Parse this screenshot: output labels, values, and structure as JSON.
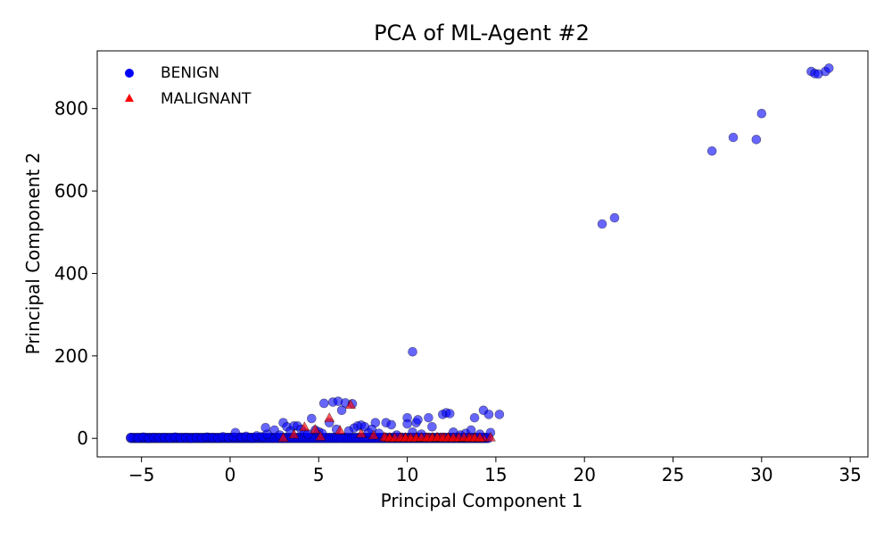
{
  "chart_data": {
    "type": "scatter",
    "title": "PCA of ML-Agent #2",
    "xlabel": "Principal Component 1",
    "ylabel": "Principal Component 2",
    "xlim": [
      -7.5,
      36
    ],
    "ylim": [
      -45,
      940
    ],
    "xticks": [
      -5,
      0,
      5,
      10,
      15,
      20,
      25,
      30,
      35
    ],
    "yticks": [
      0,
      200,
      400,
      600,
      800
    ],
    "xtick_labels": [
      "−5",
      "0",
      "5",
      "10",
      "15",
      "20",
      "25",
      "30",
      "35"
    ],
    "ytick_labels": [
      "0",
      "200",
      "400",
      "600",
      "800"
    ],
    "grid": false,
    "legend": "top-left",
    "series": [
      {
        "name": "BENIGN",
        "marker": "circle",
        "color": "#0000ff",
        "points": [
          [
            -5.6,
            2
          ],
          [
            -5.2,
            1
          ],
          [
            -4.9,
            3
          ],
          [
            -4.6,
            0
          ],
          [
            -4.3,
            2
          ],
          [
            -4.0,
            1
          ],
          [
            -3.7,
            2
          ],
          [
            -3.4,
            1
          ],
          [
            -3.1,
            3
          ],
          [
            -2.8,
            1
          ],
          [
            -2.5,
            2
          ],
          [
            -2.2,
            0
          ],
          [
            -1.9,
            2
          ],
          [
            -1.6,
            1
          ],
          [
            -1.3,
            3
          ],
          [
            -1.0,
            2
          ],
          [
            -0.7,
            1
          ],
          [
            -0.4,
            4
          ],
          [
            -0.1,
            2
          ],
          [
            0.2,
            3
          ],
          [
            0.3,
            14
          ],
          [
            0.6,
            3
          ],
          [
            0.9,
            5
          ],
          [
            1.2,
            2
          ],
          [
            1.5,
            6
          ],
          [
            1.8,
            4
          ],
          [
            2.1,
            10
          ],
          [
            2.0,
            26
          ],
          [
            2.5,
            20
          ],
          [
            2.8,
            8
          ],
          [
            3.0,
            38
          ],
          [
            3.2,
            28
          ],
          [
            3.4,
            18
          ],
          [
            3.6,
            30
          ],
          [
            3.8,
            30
          ],
          [
            4.0,
            22
          ],
          [
            4.2,
            14
          ],
          [
            4.4,
            10
          ],
          [
            4.6,
            48
          ],
          [
            4.8,
            20
          ],
          [
            5.0,
            16
          ],
          [
            5.2,
            12
          ],
          [
            5.3,
            85
          ],
          [
            5.6,
            38
          ],
          [
            5.8,
            88
          ],
          [
            6.0,
            22
          ],
          [
            6.1,
            90
          ],
          [
            6.3,
            68
          ],
          [
            6.5,
            86
          ],
          [
            6.7,
            18
          ],
          [
            6.9,
            84
          ],
          [
            7.0,
            25
          ],
          [
            7.2,
            30
          ],
          [
            7.4,
            32
          ],
          [
            7.6,
            28
          ],
          [
            7.8,
            14
          ],
          [
            8.0,
            22
          ],
          [
            8.2,
            38
          ],
          [
            8.4,
            12
          ],
          [
            8.8,
            38
          ],
          [
            9.1,
            33
          ],
          [
            9.4,
            8
          ],
          [
            10.0,
            50
          ],
          [
            10.0,
            35
          ],
          [
            10.3,
            15
          ],
          [
            10.5,
            38
          ],
          [
            10.6,
            45
          ],
          [
            10.8,
            10
          ],
          [
            11.2,
            50
          ],
          [
            11.4,
            28
          ],
          [
            12.0,
            58
          ],
          [
            12.2,
            62
          ],
          [
            12.4,
            60
          ],
          [
            12.6,
            15
          ],
          [
            13.0,
            8
          ],
          [
            13.3,
            12
          ],
          [
            13.6,
            20
          ],
          [
            13.8,
            50
          ],
          [
            14.1,
            10
          ],
          [
            14.3,
            68
          ],
          [
            14.6,
            58
          ],
          [
            14.7,
            14
          ],
          [
            15.2,
            58
          ],
          [
            10.3,
            210
          ],
          [
            21.0,
            520
          ],
          [
            21.7,
            535
          ],
          [
            27.2,
            697
          ],
          [
            28.4,
            730
          ],
          [
            29.7,
            725
          ],
          [
            30.0,
            788
          ],
          [
            32.8,
            890
          ],
          [
            33.0,
            885
          ],
          [
            33.2,
            884
          ],
          [
            33.6,
            890
          ],
          [
            33.8,
            898
          ]
        ]
      },
      {
        "name": "MALIGNANT",
        "marker": "triangle",
        "color": "#ff0000",
        "points": [
          [
            3.0,
            2
          ],
          [
            3.6,
            10
          ],
          [
            4.2,
            28
          ],
          [
            4.8,
            22
          ],
          [
            5.1,
            5
          ],
          [
            5.6,
            50
          ],
          [
            6.2,
            20
          ],
          [
            6.8,
            82
          ],
          [
            7.4,
            12
          ],
          [
            8.1,
            8
          ],
          [
            8.7,
            4
          ],
          [
            9.0,
            2
          ],
          [
            9.3,
            2
          ],
          [
            9.6,
            2
          ],
          [
            9.9,
            2
          ],
          [
            10.2,
            2
          ],
          [
            10.5,
            2
          ],
          [
            10.8,
            3
          ],
          [
            11.1,
            2
          ],
          [
            11.4,
            2
          ],
          [
            11.7,
            3
          ],
          [
            12.0,
            2
          ],
          [
            12.3,
            2
          ],
          [
            12.6,
            2
          ],
          [
            12.9,
            2
          ],
          [
            13.2,
            3
          ],
          [
            13.5,
            2
          ],
          [
            13.8,
            2
          ],
          [
            14.1,
            2
          ],
          [
            14.7,
            3
          ]
        ]
      }
    ]
  }
}
